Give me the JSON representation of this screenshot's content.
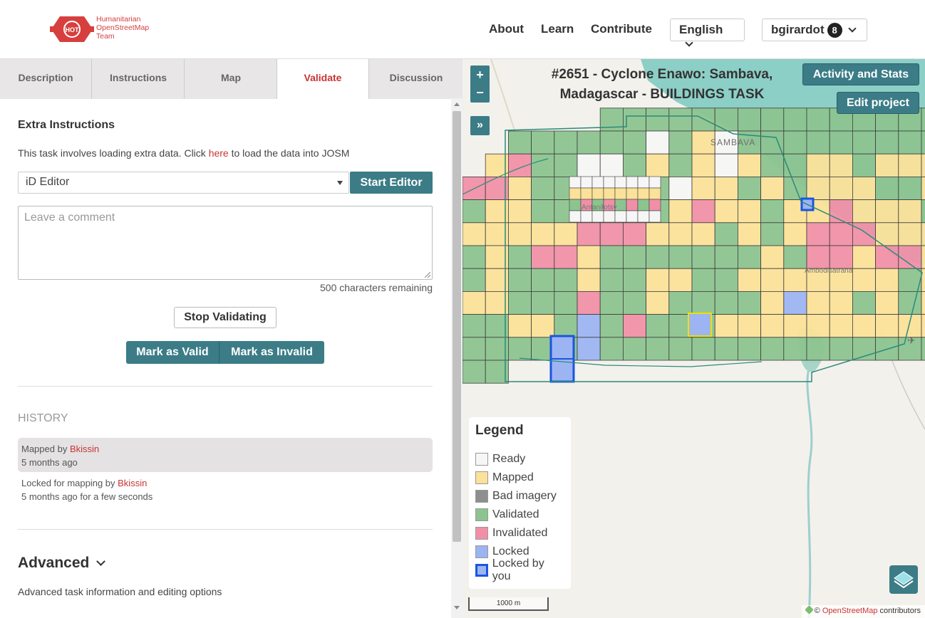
{
  "header": {
    "logo_text": [
      "Humanitarian",
      "OpenStreetMap",
      "Team"
    ],
    "logo_mark": "HOT",
    "nav": [
      "About",
      "Learn",
      "Contribute"
    ],
    "language": "English",
    "user": "bgirardot",
    "notification_count": "8"
  },
  "tabs": [
    "Description",
    "Instructions",
    "Map",
    "Validate",
    "Discussion"
  ],
  "active_tab": "Validate",
  "validate": {
    "extra_title": "Extra Instructions",
    "extra_pre": "This task involves loading extra data. Click ",
    "extra_link": "here",
    "extra_post": " to load the data into JOSM",
    "editor_selected": "iD Editor",
    "start_editor": "Start Editor",
    "comment_placeholder": "Leave a comment",
    "chars_remaining": "500 characters remaining",
    "stop_validating": "Stop Validating",
    "mark_valid": "Mark as Valid",
    "mark_invalid": "Mark as Invalid"
  },
  "history": {
    "title": "HISTORY",
    "entries": [
      {
        "action": "Mapped by ",
        "user": "Bkissin",
        "time": "5 months ago"
      },
      {
        "action": "Locked for mapping by ",
        "user": "Bkissin",
        "time": "5 months ago for a few seconds"
      }
    ]
  },
  "advanced": {
    "title": "Advanced",
    "text": "Advanced task information and editing options"
  },
  "map": {
    "zoom_in": "+",
    "zoom_out": "−",
    "expand": "»",
    "title_line1": "#2651 - Cyclone Enawo: Sambava,",
    "title_line2": "Madagascar - BUILDINGS TASK",
    "activity_button": "Activity and Stats",
    "edit_button": "Edit project",
    "place_labels": [
      "SAMBAVA",
      "Antanifotsy",
      "Ambodisatrana"
    ],
    "scale": "1000 m",
    "attribution_prefix": "© ",
    "attribution_link": "OpenStreetMap",
    "attribution_suffix": " contributors"
  },
  "legend": {
    "title": "Legend",
    "items": [
      {
        "label": "Ready",
        "color": "#f6f6f6"
      },
      {
        "label": "Mapped",
        "color": "#fbe199"
      },
      {
        "label": "Bad imagery",
        "color": "#8e8e8e"
      },
      {
        "label": "Validated",
        "color": "#8cc490"
      },
      {
        "label": "Invalidated",
        "color": "#f090a8"
      },
      {
        "label": "Locked",
        "color": "#9db4f2"
      },
      {
        "label": "Locked by you",
        "color": "#9db4f2"
      }
    ]
  },
  "colors": {
    "accent": "#3b7c87",
    "link": "#c73535",
    "ready": "#f6f6f6",
    "mapped": "#fbe199",
    "validated": "#8cc490",
    "invalidated": "#f090a8",
    "locked": "#9db4f2",
    "locked_by_you_border": "#1a55e0",
    "sea": "#8ccfc6"
  }
}
